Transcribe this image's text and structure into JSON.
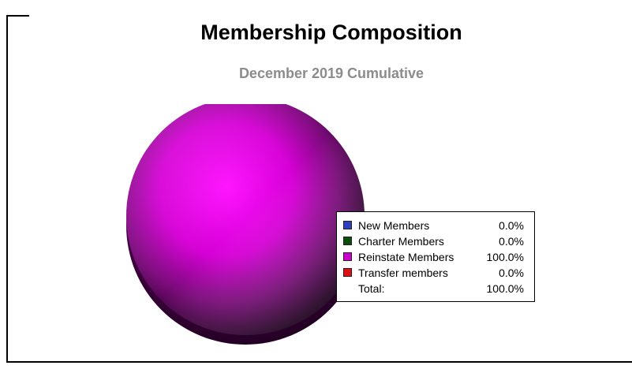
{
  "chart_data": {
    "type": "pie",
    "title": "Membership Composition",
    "subtitle": "December 2019 Cumulative",
    "slices": [
      {
        "label": "New Members",
        "value": 0.0,
        "display": "0.0%",
        "color": "#2e3fbf"
      },
      {
        "label": "Charter Members",
        "value": 0.0,
        "display": "0.0%",
        "color": "#0b4d0b"
      },
      {
        "label": "Reinstate Members",
        "value": 100.0,
        "display": "100.0%",
        "color": "#cc00cc"
      },
      {
        "label": "Transfer members",
        "value": 0.0,
        "display": "0.0%",
        "color": "#dd1111"
      }
    ],
    "total": {
      "label": "Total:",
      "display": "100.0%"
    },
    "legend_position": "right"
  }
}
